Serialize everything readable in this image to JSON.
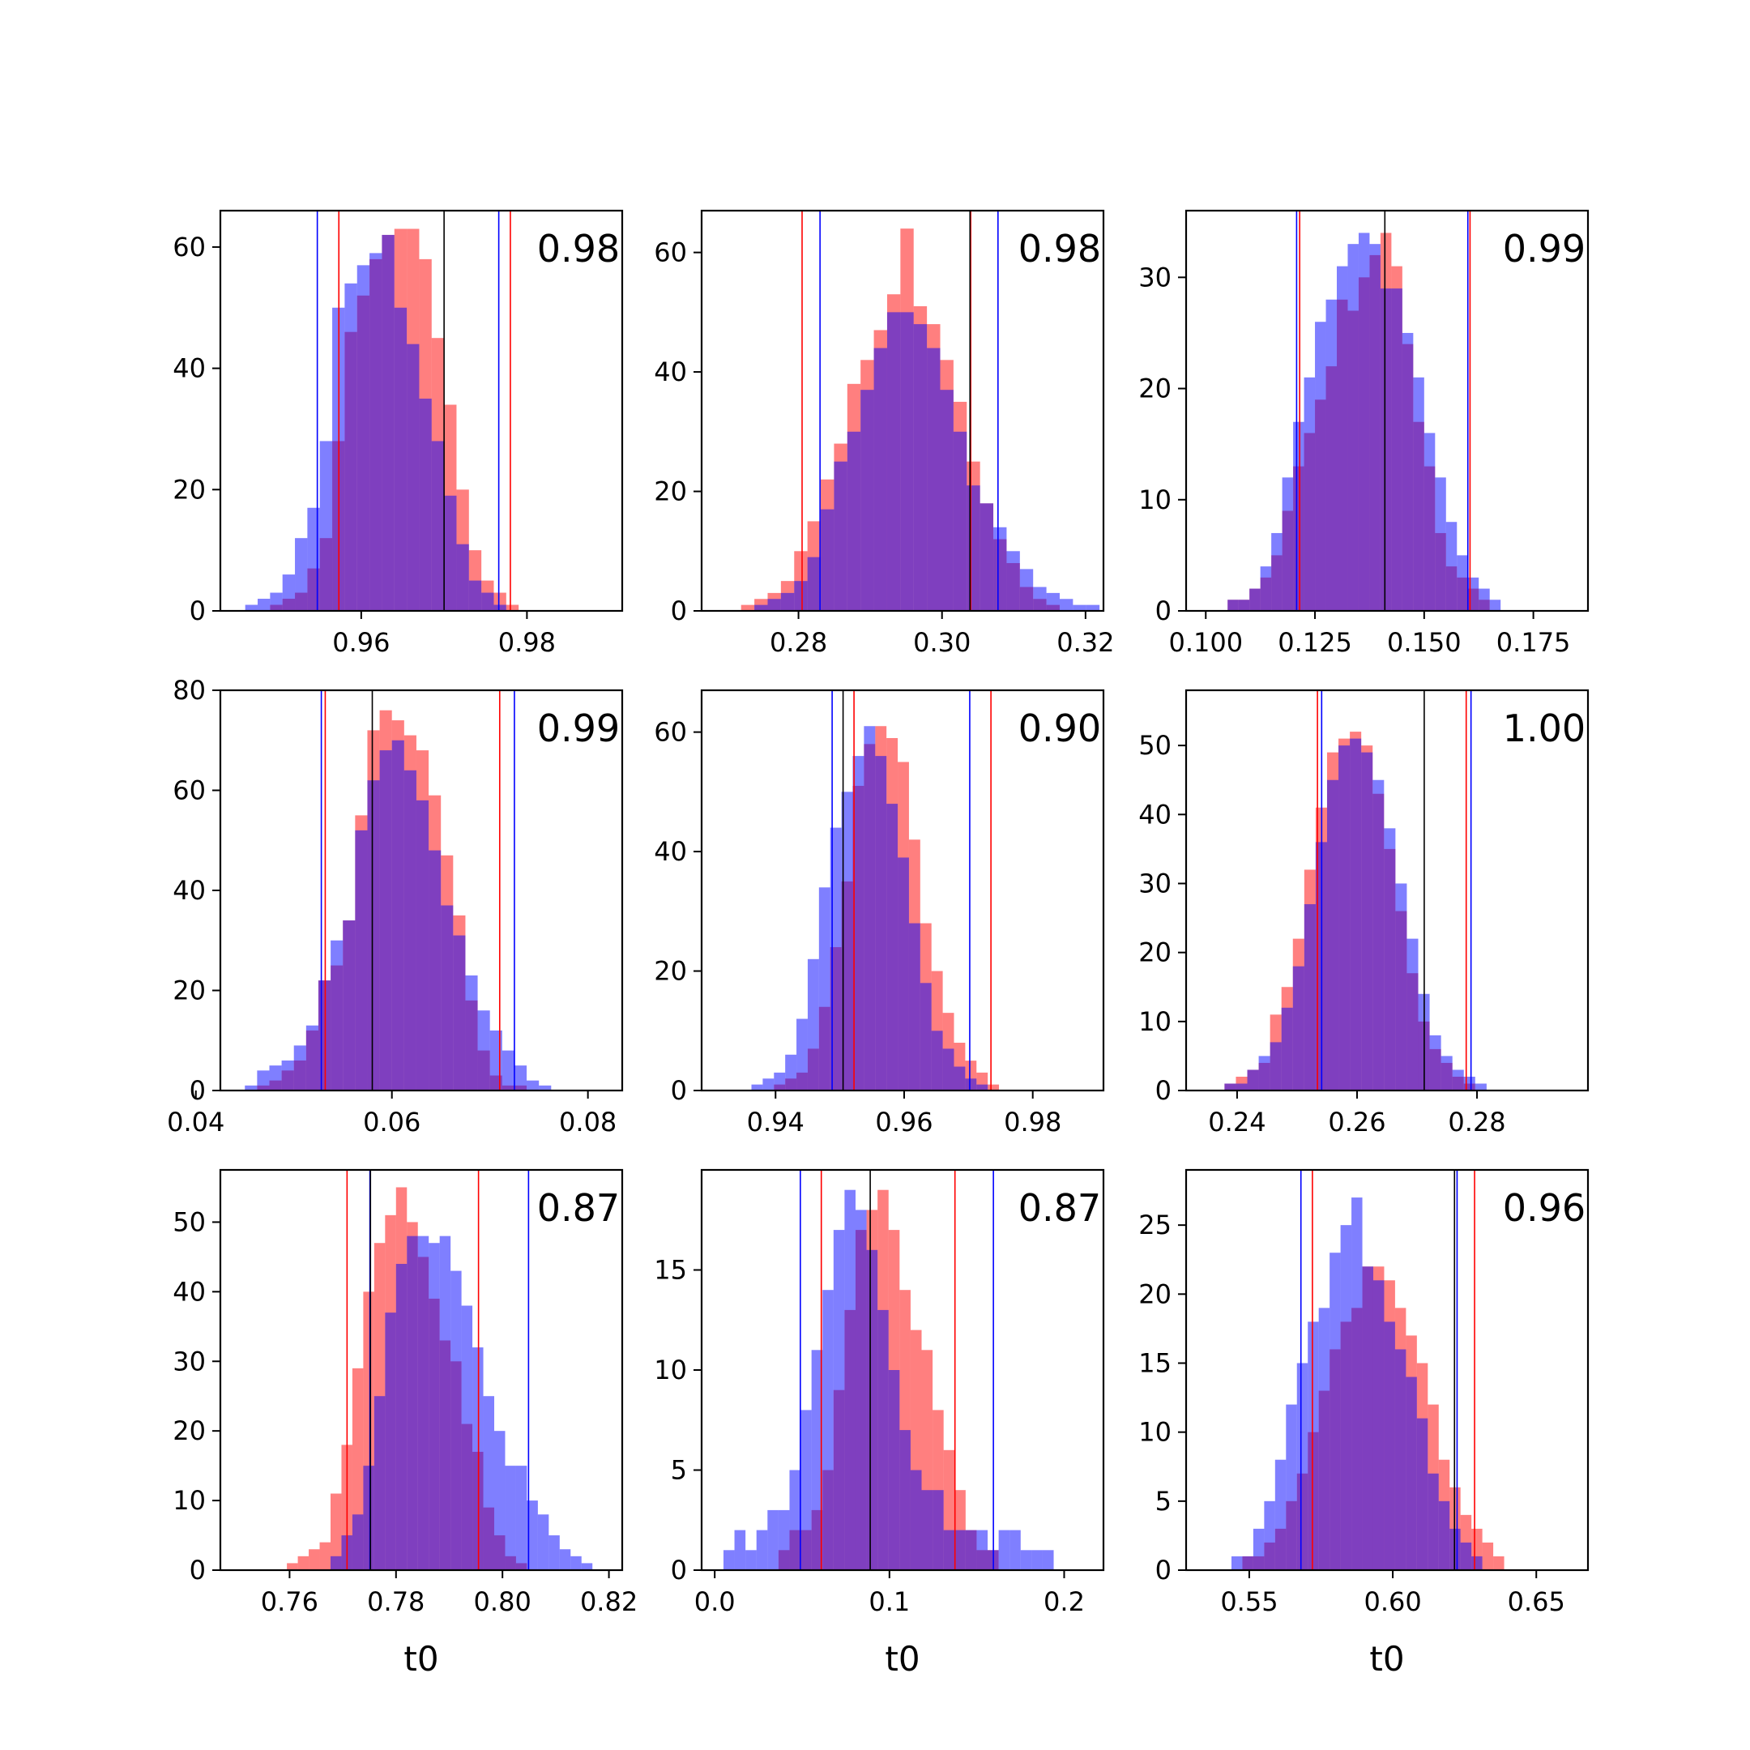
{
  "chart_data": [
    {
      "type": "histogram",
      "xlim": [
        0.943,
        0.9915
      ],
      "ylim": [
        0,
        66
      ],
      "xticks": [
        "0.96",
        "0.98"
      ],
      "yticks": [
        "0",
        "20",
        "40",
        "60"
      ],
      "annotation": "0.98",
      "xlabel": "",
      "vlines": {
        "red": [
          0.9573,
          0.978
        ],
        "blue": [
          0.9547,
          0.9766
        ],
        "black": [
          0.97
        ]
      },
      "series": [
        {
          "color": "#ff0000",
          "bin_start": 0.946,
          "bin_width": 0.0015,
          "values": [
            0,
            0,
            1,
            2,
            3,
            7,
            12,
            28,
            46,
            52,
            58,
            62,
            63,
            63,
            58,
            45,
            34,
            20,
            10,
            5,
            3,
            1,
            0,
            0
          ]
        },
        {
          "color": "#0000ff",
          "bin_start": 0.946,
          "bin_width": 0.0015,
          "values": [
            1,
            2,
            3,
            6,
            12,
            17,
            28,
            50,
            54,
            57,
            59,
            62,
            50,
            44,
            35,
            28,
            19,
            11,
            5,
            3,
            1,
            0,
            0,
            0
          ]
        }
      ]
    },
    {
      "type": "histogram",
      "xlim": [
        0.2665,
        0.3225
      ],
      "ylim": [
        0,
        67
      ],
      "xticks": [
        "0.28",
        "0.30",
        "0.32"
      ],
      "yticks": [
        "0",
        "20",
        "40",
        "60"
      ],
      "annotation": "0.98",
      "xlabel": "",
      "vlines": {
        "red": [
          0.2805,
          0.304
        ],
        "blue": [
          0.283,
          0.3078
        ],
        "black": [
          0.3039
        ]
      },
      "series": [
        {
          "color": "#ff0000",
          "bin_start": 0.272,
          "bin_width": 0.00185,
          "values": [
            1,
            2,
            3,
            5,
            10,
            15,
            22,
            28,
            38,
            42,
            47,
            53,
            64,
            51,
            48,
            42,
            35,
            25,
            18,
            12,
            8,
            4,
            2,
            1,
            0,
            0,
            0,
            0
          ]
        },
        {
          "color": "#0000ff",
          "bin_start": 0.272,
          "bin_width": 0.00185,
          "values": [
            0,
            1,
            2,
            3,
            5,
            9,
            17,
            25,
            30,
            37,
            44,
            50,
            50,
            48,
            44,
            37,
            30,
            21,
            18,
            14,
            10,
            7,
            4,
            3,
            2,
            1,
            1,
            0
          ]
        }
      ]
    },
    {
      "type": "histogram",
      "xlim": [
        0.0955,
        0.1875
      ],
      "ylim": [
        0,
        36
      ],
      "xticks": [
        "0.100",
        "0.125",
        "0.150",
        "0.175"
      ],
      "yticks": [
        "0",
        "10",
        "20",
        "30"
      ],
      "annotation": "0.99",
      "xlabel": "",
      "vlines": {
        "red": [
          0.1215,
          0.1605
        ],
        "blue": [
          0.1208,
          0.16
        ],
        "black": [
          0.141
        ]
      },
      "series": [
        {
          "color": "#ff0000",
          "bin_start": 0.1,
          "bin_width": 0.0025,
          "values": [
            0,
            0,
            1,
            1,
            2,
            3,
            5,
            9,
            13,
            16,
            19,
            22,
            28,
            27,
            30,
            32,
            34,
            31,
            24,
            17,
            13,
            7,
            4,
            3,
            2,
            1,
            0,
            0,
            0,
            0,
            0,
            0
          ]
        },
        {
          "color": "#0000ff",
          "bin_start": 0.1,
          "bin_width": 0.0025,
          "values": [
            0,
            0,
            1,
            1,
            2,
            4,
            7,
            12,
            17,
            21,
            26,
            28,
            31,
            33,
            34,
            33,
            29,
            29,
            25,
            21,
            16,
            12,
            8,
            5,
            3,
            2,
            1,
            0,
            0,
            0,
            0,
            0
          ]
        }
      ]
    },
    {
      "type": "histogram",
      "xlim": [
        0.0425,
        0.0835
      ],
      "ylim": [
        0,
        80
      ],
      "xticks": [
        "0.04",
        "0.06",
        "0.08"
      ],
      "yticks": [
        "0",
        "20",
        "40",
        "60",
        "80"
      ],
      "annotation": "0.99",
      "xlabel": "",
      "vlines": {
        "red": [
          0.0532,
          0.071
        ],
        "blue": [
          0.0528,
          0.0725
        ],
        "black": [
          0.058
        ]
      },
      "series": [
        {
          "color": "#ff0000",
          "bin_start": 0.045,
          "bin_width": 0.00125,
          "values": [
            0,
            1,
            2,
            4,
            6,
            12,
            22,
            25,
            34,
            55,
            72,
            76,
            74,
            71,
            68,
            59,
            47,
            35,
            18,
            8,
            3,
            1,
            1,
            0,
            0,
            0,
            0,
            0,
            0
          ]
        },
        {
          "color": "#0000ff",
          "bin_start": 0.045,
          "bin_width": 0.00125,
          "values": [
            1,
            4,
            5,
            6,
            9,
            13,
            22,
            30,
            34,
            52,
            62,
            68,
            70,
            64,
            58,
            48,
            37,
            31,
            23,
            16,
            12,
            8,
            5,
            2,
            1,
            0,
            0,
            0,
            0
          ]
        }
      ]
    },
    {
      "type": "histogram",
      "xlim": [
        0.9285,
        0.991
      ],
      "ylim": [
        0,
        67
      ],
      "xticks": [
        "0.94",
        "0.96",
        "0.98"
      ],
      "yticks": [
        "0",
        "20",
        "40",
        "60"
      ],
      "annotation": "0.90",
      "xlabel": "",
      "vlines": {
        "red": [
          0.9522,
          0.9735
        ],
        "blue": [
          0.9488,
          0.9702
        ],
        "black": [
          0.9505
        ]
      },
      "series": [
        {
          "color": "#ff0000",
          "bin_start": 0.931,
          "bin_width": 0.00175,
          "values": [
            0,
            0,
            0,
            0,
            0,
            1,
            2,
            3,
            7,
            14,
            24,
            35,
            51,
            58,
            61,
            59,
            55,
            42,
            28,
            20,
            13,
            8,
            5,
            3,
            1,
            0,
            0,
            0,
            0,
            0,
            0,
            0
          ]
        },
        {
          "color": "#0000ff",
          "bin_start": 0.931,
          "bin_width": 0.00175,
          "values": [
            0,
            0,
            0,
            1,
            2,
            3,
            6,
            12,
            22,
            34,
            44,
            50,
            56,
            61,
            56,
            48,
            39,
            28,
            18,
            10,
            7,
            4,
            2,
            1,
            0,
            0,
            0,
            0,
            0,
            0,
            0,
            0
          ]
        }
      ]
    },
    {
      "type": "histogram",
      "xlim": [
        0.2315,
        0.2985
      ],
      "ylim": [
        0,
        58
      ],
      "xticks": [
        "0.24",
        "0.26",
        "0.28"
      ],
      "yticks": [
        "0",
        "10",
        "20",
        "30",
        "40",
        "50"
      ],
      "annotation": "1.00",
      "xlabel": "",
      "vlines": {
        "red": [
          0.2534,
          0.2782
        ],
        "blue": [
          0.2541,
          0.279
        ],
        "black": [
          0.2712
        ]
      },
      "series": [
        {
          "color": "#ff0000",
          "bin_start": 0.236,
          "bin_width": 0.0019,
          "values": [
            0,
            1,
            2,
            3,
            4,
            11,
            15,
            22,
            32,
            41,
            49,
            51,
            52,
            50,
            43,
            35,
            26,
            17,
            10,
            6,
            4,
            2,
            1,
            0,
            0,
            0,
            0,
            0,
            0,
            0
          ]
        },
        {
          "color": "#0000ff",
          "bin_start": 0.236,
          "bin_width": 0.0019,
          "values": [
            0,
            1,
            1,
            3,
            5,
            7,
            12,
            18,
            27,
            36,
            45,
            50,
            51,
            49,
            45,
            38,
            30,
            22,
            14,
            8,
            5,
            3,
            2,
            1,
            0,
            0,
            0,
            0,
            0,
            0
          ]
        }
      ]
    },
    {
      "type": "histogram",
      "xlim": [
        0.747,
        0.8225
      ],
      "ylim": [
        0,
        57.5
      ],
      "xticks": [
        "0.76",
        "0.78",
        "0.80",
        "0.82"
      ],
      "yticks": [
        "0",
        "10",
        "20",
        "30",
        "40",
        "50"
      ],
      "annotation": "0.87",
      "xlabel": "t0",
      "vlines": {
        "red": [
          0.7708,
          0.7955
        ],
        "blue": [
          0.7751,
          0.8049
        ],
        "black": [
          0.7752
        ]
      },
      "series": [
        {
          "color": "#ff0000",
          "bin_start": 0.7595,
          "bin_width": 0.00205,
          "values": [
            1,
            2,
            3,
            4,
            11,
            18,
            29,
            40,
            47,
            51,
            55,
            50,
            45,
            39,
            33,
            30,
            21,
            17,
            9,
            5,
            2,
            1,
            0,
            0,
            0,
            0,
            0,
            0,
            0
          ]
        },
        {
          "color": "#0000ff",
          "bin_start": 0.7595,
          "bin_width": 0.00205,
          "values": [
            0,
            0,
            0,
            0,
            2,
            5,
            8,
            15,
            25,
            37,
            44,
            48,
            48,
            47,
            48,
            43,
            38,
            32,
            25,
            20,
            15,
            15,
            10,
            8,
            5,
            3,
            2,
            1,
            0
          ]
        }
      ]
    },
    {
      "type": "histogram",
      "xlim": [
        -0.0075,
        0.2225
      ],
      "ylim": [
        0,
        20
      ],
      "xticks": [
        "0.0",
        "0.1",
        "0.2"
      ],
      "yticks": [
        "0",
        "5",
        "10",
        "15"
      ],
      "annotation": "0.87",
      "xlabel": "t0",
      "vlines": {
        "red": [
          0.061,
          0.1375
        ],
        "blue": [
          0.049,
          0.1595
        ],
        "black": [
          0.089
        ]
      },
      "series": [
        {
          "color": "#ff0000",
          "bin_start": 0.005,
          "bin_width": 0.0063,
          "values": [
            0,
            0,
            0,
            0,
            0,
            1,
            2,
            2,
            3,
            5,
            9,
            13,
            17,
            18,
            19,
            17,
            14,
            12,
            11,
            8,
            6,
            4,
            2,
            1,
            1,
            0,
            0,
            0,
            0,
            0,
            0
          ]
        },
        {
          "color": "#0000ff",
          "bin_start": 0.005,
          "bin_width": 0.0063,
          "values": [
            1,
            2,
            1,
            2,
            3,
            3,
            5,
            8,
            11,
            14,
            17,
            19,
            18,
            16,
            13,
            10,
            7,
            5,
            4,
            4,
            2,
            2,
            2,
            2,
            1,
            2,
            2,
            1,
            1,
            1,
            0
          ]
        }
      ]
    },
    {
      "type": "histogram",
      "xlim": [
        0.528,
        0.668
      ],
      "ylim": [
        0,
        29
      ],
      "xticks": [
        "0.55",
        "0.60",
        "0.65"
      ],
      "yticks": [
        "0",
        "5",
        "10",
        "15",
        "20",
        "25"
      ],
      "annotation": "0.96",
      "xlabel": "t0",
      "vlines": {
        "red": [
          0.572,
          0.6285
        ],
        "blue": [
          0.568,
          0.6224
        ],
        "black": [
          0.6215
        ]
      },
      "series": [
        {
          "color": "#ff0000",
          "bin_start": 0.54,
          "bin_width": 0.0038,
          "values": [
            0,
            0,
            1,
            1,
            2,
            3,
            5,
            7,
            10,
            13,
            16,
            18,
            19,
            22,
            22,
            21,
            19,
            17,
            15,
            12,
            8,
            6,
            4,
            3,
            2,
            1,
            0,
            0,
            0,
            0
          ]
        },
        {
          "color": "#0000ff",
          "bin_start": 0.54,
          "bin_width": 0.0038,
          "values": [
            0,
            1,
            1,
            3,
            5,
            8,
            12,
            15,
            18,
            19,
            23,
            25,
            27,
            22,
            21,
            18,
            16,
            14,
            11,
            7,
            5,
            3,
            2,
            1,
            0,
            0,
            0,
            0,
            0,
            0
          ]
        }
      ]
    }
  ]
}
